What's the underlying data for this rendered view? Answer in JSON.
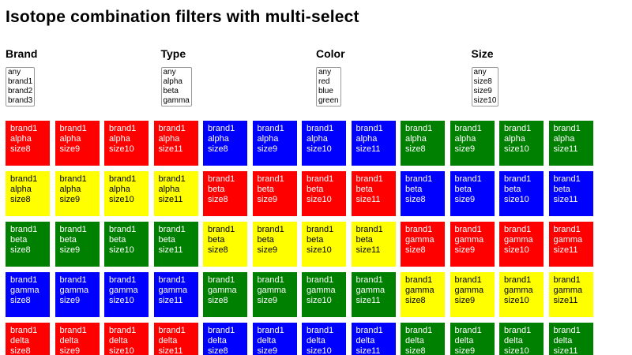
{
  "title": "Isotope combination filters with multi-select",
  "filters": [
    {
      "id": "brand",
      "label": "Brand",
      "options": [
        "any",
        "brand1",
        "brand2",
        "brand3"
      ]
    },
    {
      "id": "type",
      "label": "Type",
      "options": [
        "any",
        "alpha",
        "beta",
        "gamma"
      ]
    },
    {
      "id": "color",
      "label": "Color",
      "options": [
        "any",
        "red",
        "blue",
        "green"
      ]
    },
    {
      "id": "size",
      "label": "Size",
      "options": [
        "any",
        "size8",
        "size9",
        "size10"
      ]
    }
  ],
  "colors": {
    "red": "#ff0000",
    "blue": "#0000ff",
    "green": "#008000",
    "yellow": "#ffff00"
  },
  "text_default": "#ffffff",
  "text_on_yellow": "#000000",
  "grid": {
    "items": [
      {
        "brand": "brand1",
        "type": "alpha",
        "size": "size8",
        "color": "red"
      },
      {
        "brand": "brand1",
        "type": "alpha",
        "size": "size9",
        "color": "red"
      },
      {
        "brand": "brand1",
        "type": "alpha",
        "size": "size10",
        "color": "red"
      },
      {
        "brand": "brand1",
        "type": "alpha",
        "size": "size11",
        "color": "red"
      },
      {
        "brand": "brand1",
        "type": "alpha",
        "size": "size8",
        "color": "blue"
      },
      {
        "brand": "brand1",
        "type": "alpha",
        "size": "size9",
        "color": "blue"
      },
      {
        "brand": "brand1",
        "type": "alpha",
        "size": "size10",
        "color": "blue"
      },
      {
        "brand": "brand1",
        "type": "alpha",
        "size": "size11",
        "color": "blue"
      },
      {
        "brand": "brand1",
        "type": "alpha",
        "size": "size8",
        "color": "green"
      },
      {
        "brand": "brand1",
        "type": "alpha",
        "size": "size9",
        "color": "green"
      },
      {
        "brand": "brand1",
        "type": "alpha",
        "size": "size10",
        "color": "green"
      },
      {
        "brand": "brand1",
        "type": "alpha",
        "size": "size11",
        "color": "green"
      },
      {
        "brand": "brand1",
        "type": "alpha",
        "size": "size8",
        "color": "yellow"
      },
      {
        "brand": "brand1",
        "type": "alpha",
        "size": "size9",
        "color": "yellow"
      },
      {
        "brand": "brand1",
        "type": "alpha",
        "size": "size10",
        "color": "yellow"
      },
      {
        "brand": "brand1",
        "type": "alpha",
        "size": "size11",
        "color": "yellow"
      },
      {
        "brand": "brand1",
        "type": "beta",
        "size": "size8",
        "color": "red"
      },
      {
        "brand": "brand1",
        "type": "beta",
        "size": "size9",
        "color": "red"
      },
      {
        "brand": "brand1",
        "type": "beta",
        "size": "size10",
        "color": "red"
      },
      {
        "brand": "brand1",
        "type": "beta",
        "size": "size11",
        "color": "red"
      },
      {
        "brand": "brand1",
        "type": "beta",
        "size": "size8",
        "color": "blue"
      },
      {
        "brand": "brand1",
        "type": "beta",
        "size": "size9",
        "color": "blue"
      },
      {
        "brand": "brand1",
        "type": "beta",
        "size": "size10",
        "color": "blue"
      },
      {
        "brand": "brand1",
        "type": "beta",
        "size": "size11",
        "color": "blue"
      },
      {
        "brand": "brand1",
        "type": "beta",
        "size": "size8",
        "color": "green"
      },
      {
        "brand": "brand1",
        "type": "beta",
        "size": "size9",
        "color": "green"
      },
      {
        "brand": "brand1",
        "type": "beta",
        "size": "size10",
        "color": "green"
      },
      {
        "brand": "brand1",
        "type": "beta",
        "size": "size11",
        "color": "green"
      },
      {
        "brand": "brand1",
        "type": "beta",
        "size": "size8",
        "color": "yellow"
      },
      {
        "brand": "brand1",
        "type": "beta",
        "size": "size9",
        "color": "yellow"
      },
      {
        "brand": "brand1",
        "type": "beta",
        "size": "size10",
        "color": "yellow"
      },
      {
        "brand": "brand1",
        "type": "beta",
        "size": "size11",
        "color": "yellow"
      },
      {
        "brand": "brand1",
        "type": "gamma",
        "size": "size8",
        "color": "red"
      },
      {
        "brand": "brand1",
        "type": "gamma",
        "size": "size9",
        "color": "red"
      },
      {
        "brand": "brand1",
        "type": "gamma",
        "size": "size10",
        "color": "red"
      },
      {
        "brand": "brand1",
        "type": "gamma",
        "size": "size11",
        "color": "red"
      },
      {
        "brand": "brand1",
        "type": "gamma",
        "size": "size8",
        "color": "blue"
      },
      {
        "brand": "brand1",
        "type": "gamma",
        "size": "size9",
        "color": "blue"
      },
      {
        "brand": "brand1",
        "type": "gamma",
        "size": "size10",
        "color": "blue"
      },
      {
        "brand": "brand1",
        "type": "gamma",
        "size": "size11",
        "color": "blue"
      },
      {
        "brand": "brand1",
        "type": "gamma",
        "size": "size8",
        "color": "green"
      },
      {
        "brand": "brand1",
        "type": "gamma",
        "size": "size9",
        "color": "green"
      },
      {
        "brand": "brand1",
        "type": "gamma",
        "size": "size10",
        "color": "green"
      },
      {
        "brand": "brand1",
        "type": "gamma",
        "size": "size11",
        "color": "green"
      },
      {
        "brand": "brand1",
        "type": "gamma",
        "size": "size8",
        "color": "yellow"
      },
      {
        "brand": "brand1",
        "type": "gamma",
        "size": "size9",
        "color": "yellow"
      },
      {
        "brand": "brand1",
        "type": "gamma",
        "size": "size10",
        "color": "yellow"
      },
      {
        "brand": "brand1",
        "type": "gamma",
        "size": "size11",
        "color": "yellow"
      },
      {
        "brand": "brand1",
        "type": "delta",
        "size": "size8",
        "color": "red"
      },
      {
        "brand": "brand1",
        "type": "delta",
        "size": "size9",
        "color": "red"
      },
      {
        "brand": "brand1",
        "type": "delta",
        "size": "size10",
        "color": "red"
      },
      {
        "brand": "brand1",
        "type": "delta",
        "size": "size11",
        "color": "red"
      },
      {
        "brand": "brand1",
        "type": "delta",
        "size": "size8",
        "color": "blue"
      },
      {
        "brand": "brand1",
        "type": "delta",
        "size": "size9",
        "color": "blue"
      },
      {
        "brand": "brand1",
        "type": "delta",
        "size": "size10",
        "color": "blue"
      },
      {
        "brand": "brand1",
        "type": "delta",
        "size": "size11",
        "color": "blue"
      },
      {
        "brand": "brand1",
        "type": "delta",
        "size": "size8",
        "color": "green"
      },
      {
        "brand": "brand1",
        "type": "delta",
        "size": "size9",
        "color": "green"
      },
      {
        "brand": "brand1",
        "type": "delta",
        "size": "size10",
        "color": "green"
      },
      {
        "brand": "brand1",
        "type": "delta",
        "size": "size11",
        "color": "green"
      }
    ]
  }
}
